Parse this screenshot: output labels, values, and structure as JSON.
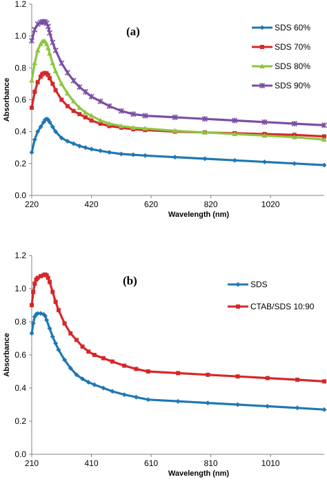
{
  "chart_data": [
    {
      "type": "line",
      "panel_label": "(a)",
      "xlabel": "Wavelength (nm)",
      "ylabel": "Absorbance",
      "xlim": [
        220,
        1200
      ],
      "ylim": [
        0,
        1.2
      ],
      "xticks": [
        220,
        420,
        620,
        820,
        1020
      ],
      "xtick_labels": [
        "220",
        "420",
        "620",
        "820",
        "1020"
      ],
      "yticks": [
        0,
        0.2,
        0.4,
        0.6,
        0.8,
        1.0,
        1.2
      ],
      "ytick_labels": [
        "0.0",
        "0.2",
        "0.4",
        "0.6",
        "0.8",
        "1.0",
        "1.2"
      ],
      "grid": false,
      "legend_position": "right",
      "series": [
        {
          "name": "SDS 60%",
          "color": "#1F77B4",
          "marker": "diamond",
          "x": [
            220,
            230,
            240,
            250,
            260,
            265,
            270,
            275,
            280,
            290,
            300,
            320,
            340,
            360,
            380,
            400,
            420,
            450,
            480,
            520,
            560,
            600,
            700,
            800,
            900,
            1000,
            1100,
            1200
          ],
          "y": [
            0.27,
            0.35,
            0.4,
            0.43,
            0.46,
            0.475,
            0.48,
            0.475,
            0.46,
            0.43,
            0.4,
            0.36,
            0.34,
            0.325,
            0.31,
            0.3,
            0.29,
            0.28,
            0.27,
            0.26,
            0.255,
            0.25,
            0.24,
            0.23,
            0.22,
            0.21,
            0.2,
            0.19
          ]
        },
        {
          "name": "SDS 70%",
          "color": "#D62728",
          "marker": "square",
          "x": [
            220,
            230,
            240,
            250,
            255,
            260,
            265,
            270,
            275,
            280,
            290,
            300,
            320,
            340,
            360,
            380,
            400,
            420,
            450,
            480,
            520,
            560,
            600,
            700,
            800,
            900,
            1000,
            1100,
            1200
          ],
          "y": [
            0.55,
            0.65,
            0.71,
            0.745,
            0.76,
            0.765,
            0.768,
            0.765,
            0.755,
            0.735,
            0.7,
            0.66,
            0.6,
            0.56,
            0.53,
            0.51,
            0.49,
            0.47,
            0.45,
            0.435,
            0.425,
            0.415,
            0.41,
            0.4,
            0.395,
            0.39,
            0.385,
            0.38,
            0.37
          ]
        },
        {
          "name": "SDS 80%",
          "color": "#8DC63F",
          "marker": "triangle",
          "x": [
            220,
            230,
            240,
            250,
            255,
            260,
            265,
            270,
            275,
            280,
            290,
            300,
            320,
            340,
            360,
            380,
            400,
            420,
            450,
            480,
            520,
            560,
            600,
            700,
            800,
            900,
            1000,
            1100,
            1200
          ],
          "y": [
            0.72,
            0.83,
            0.91,
            0.95,
            0.965,
            0.968,
            0.965,
            0.95,
            0.925,
            0.89,
            0.83,
            0.78,
            0.7,
            0.64,
            0.59,
            0.55,
            0.52,
            0.5,
            0.47,
            0.45,
            0.435,
            0.425,
            0.42,
            0.405,
            0.395,
            0.385,
            0.375,
            0.365,
            0.35
          ]
        },
        {
          "name": "SDS 90%",
          "color": "#7B4EA3",
          "marker": "star",
          "x": [
            220,
            230,
            240,
            250,
            255,
            260,
            265,
            270,
            275,
            280,
            290,
            300,
            320,
            340,
            360,
            380,
            400,
            420,
            450,
            480,
            520,
            560,
            600,
            700,
            800,
            900,
            1000,
            1100,
            1200
          ],
          "y": [
            0.97,
            1.04,
            1.075,
            1.085,
            1.088,
            1.09,
            1.088,
            1.08,
            1.06,
            1.02,
            0.96,
            0.91,
            0.83,
            0.77,
            0.72,
            0.68,
            0.65,
            0.62,
            0.59,
            0.56,
            0.53,
            0.51,
            0.5,
            0.49,
            0.48,
            0.47,
            0.46,
            0.45,
            0.44
          ]
        }
      ]
    },
    {
      "type": "line",
      "panel_label": "(b)",
      "xlabel": "Wavelength (nm)",
      "ylabel": "Absorbance",
      "xlim": [
        210,
        1190
      ],
      "ylim": [
        0,
        1.2
      ],
      "xticks": [
        210,
        410,
        610,
        810,
        1010
      ],
      "xtick_labels": [
        "210",
        "410",
        "610",
        "810",
        "1010"
      ],
      "yticks": [
        0,
        0.2,
        0.4,
        0.6,
        0.8,
        1.0,
        1.2
      ],
      "ytick_labels": [
        "0.0",
        "0.2",
        "0.4",
        "0.6",
        "0.8",
        "1.0",
        "1.2"
      ],
      "grid": false,
      "legend_position": "right",
      "series": [
        {
          "name": "SDS",
          "color": "#1F77B4",
          "marker": "diamond",
          "x": [
            210,
            215,
            220,
            225,
            230,
            240,
            250,
            255,
            260,
            270,
            280,
            290,
            300,
            320,
            340,
            360,
            380,
            400,
            420,
            450,
            480,
            520,
            560,
            600,
            700,
            800,
            900,
            1000,
            1100,
            1190
          ],
          "y": [
            0.73,
            0.79,
            0.83,
            0.845,
            0.85,
            0.85,
            0.845,
            0.835,
            0.81,
            0.76,
            0.71,
            0.67,
            0.63,
            0.57,
            0.52,
            0.48,
            0.455,
            0.435,
            0.42,
            0.4,
            0.38,
            0.36,
            0.345,
            0.33,
            0.32,
            0.31,
            0.3,
            0.29,
            0.28,
            0.27
          ]
        },
        {
          "name": "CTAB/SDS 10:90",
          "color": "#D62728",
          "marker": "square",
          "x": [
            210,
            215,
            220,
            225,
            230,
            240,
            250,
            255,
            260,
            265,
            270,
            280,
            290,
            300,
            320,
            340,
            360,
            380,
            400,
            420,
            450,
            480,
            520,
            560,
            600,
            700,
            800,
            900,
            1000,
            1100,
            1190
          ],
          "y": [
            0.9,
            0.98,
            1.03,
            1.055,
            1.065,
            1.075,
            1.082,
            1.085,
            1.08,
            1.065,
            1.04,
            0.98,
            0.92,
            0.87,
            0.79,
            0.73,
            0.69,
            0.65,
            0.62,
            0.6,
            0.58,
            0.56,
            0.535,
            0.515,
            0.5,
            0.49,
            0.48,
            0.47,
            0.46,
            0.45,
            0.44
          ]
        }
      ]
    }
  ]
}
